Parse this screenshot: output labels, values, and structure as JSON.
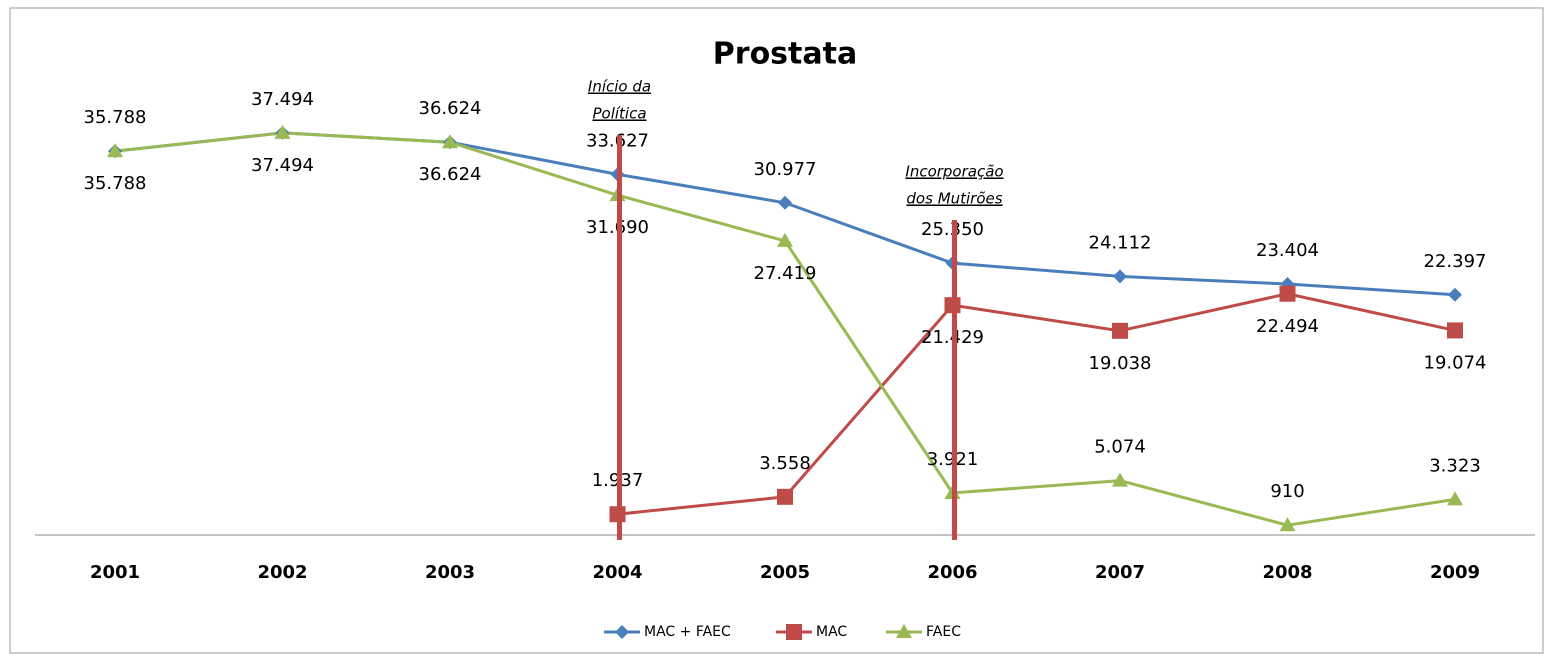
{
  "chart_data": {
    "type": "line",
    "title": "Prostata",
    "categories": [
      "2001",
      "2002",
      "2003",
      "2004",
      "2005",
      "2006",
      "2007",
      "2008",
      "2009"
    ],
    "ylim": [
      0,
      40000
    ],
    "series": [
      {
        "name": "MAC + FAEC",
        "color": "#4a7ebb",
        "marker": "diamond",
        "values": [
          35788,
          37494,
          36624,
          33627,
          30977,
          25350,
          24112,
          23404,
          22397
        ],
        "value_labels": [
          "35.788",
          "37.494",
          "36.624",
          "33.627",
          "30.977",
          "25.350",
          "24.112",
          "23.404",
          "22.397"
        ]
      },
      {
        "name": "MAC",
        "color": "#be4b48",
        "marker": "square",
        "values": [
          null,
          null,
          null,
          1937,
          3558,
          21429,
          19038,
          22494,
          19074
        ],
        "value_labels": [
          null,
          null,
          null,
          "1.937",
          "3.558",
          "21.429",
          "19.038",
          "22.494",
          "19.074"
        ]
      },
      {
        "name": "FAEC",
        "color": "#98b954",
        "marker": "triangle",
        "values": [
          35788,
          37494,
          36624,
          31690,
          27419,
          3921,
          5074,
          910,
          3323
        ],
        "value_labels": [
          "35.788",
          "37.494",
          "36.624",
          "31.690",
          "27.419",
          "3.921",
          "5.074",
          "910",
          "3.323"
        ]
      }
    ],
    "annotations": [
      {
        "category": "2004",
        "text": [
          "Início da",
          "Política"
        ],
        "color": "#be4b48"
      },
      {
        "category": "2006",
        "text": [
          "Incorporação",
          "dos Mutirões"
        ],
        "color": "#be4b48"
      }
    ],
    "legend": "bottom"
  }
}
